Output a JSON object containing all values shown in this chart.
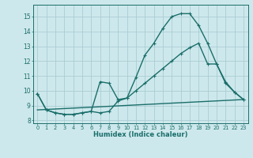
{
  "xlabel": "Humidex (Indice chaleur)",
  "xlim": [
    -0.5,
    23.5
  ],
  "ylim": [
    7.8,
    15.8
  ],
  "xticks": [
    0,
    1,
    2,
    3,
    4,
    5,
    6,
    7,
    8,
    9,
    10,
    11,
    12,
    13,
    14,
    15,
    16,
    17,
    18,
    19,
    20,
    21,
    22,
    23
  ],
  "yticks": [
    8,
    9,
    10,
    11,
    12,
    13,
    14,
    15
  ],
  "background_color": "#cde8ec",
  "grid_color": "#aacdd4",
  "line_color": "#1a6e6a",
  "line_width": 1.0,
  "marker": "+",
  "marker_size": 3.5,
  "series": [
    {
      "x": [
        0,
        1,
        2,
        3,
        4,
        5,
        6,
        7,
        8,
        9,
        10,
        11,
        12,
        13,
        14,
        15,
        16,
        17,
        18,
        19,
        20,
        21,
        22,
        23
      ],
      "y": [
        9.8,
        8.7,
        8.5,
        8.4,
        8.4,
        8.5,
        8.6,
        10.6,
        10.5,
        9.4,
        9.5,
        10.9,
        12.4,
        13.2,
        14.2,
        15.0,
        15.2,
        15.2,
        14.4,
        13.2,
        11.8,
        10.6,
        9.9,
        9.4
      ]
    },
    {
      "x": [
        0,
        1,
        2,
        3,
        4,
        5,
        6,
        7,
        8,
        9,
        10,
        11,
        12,
        13,
        14,
        15,
        16,
        17,
        18,
        19,
        20,
        21,
        22,
        23
      ],
      "y": [
        9.8,
        8.7,
        8.5,
        8.4,
        8.4,
        8.5,
        8.6,
        8.5,
        8.6,
        9.3,
        9.5,
        10.0,
        10.5,
        11.0,
        11.5,
        12.0,
        12.5,
        12.9,
        13.2,
        11.8,
        11.8,
        10.5,
        9.9,
        9.4
      ]
    },
    {
      "x": [
        0,
        23
      ],
      "y": [
        8.7,
        9.4
      ],
      "no_marker": true
    }
  ]
}
